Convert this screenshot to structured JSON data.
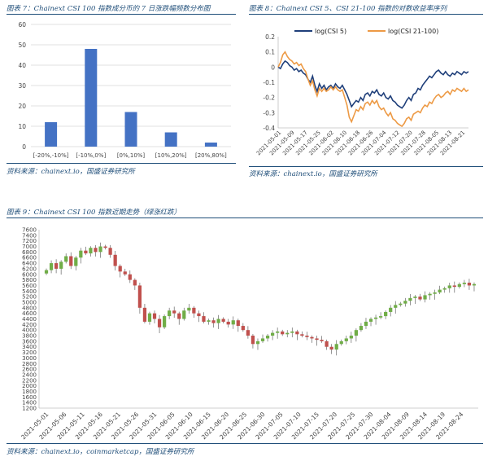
{
  "fig7": {
    "caption": "图表 7：Chainext CSI 100 指数成分币的 7 日涨跌幅频数分布图",
    "source": "资料来源：chainext.io，国盛证券研究所"
  },
  "fig8": {
    "caption": "图表 8：Chainext CSI 5、CSI 21-100 指数的对数收益率序列",
    "source": "资料来源：chainext.io，国盛证券研究所"
  },
  "fig9": {
    "caption": "图表 9：Chainext CSI 100 指数近期走势（绿涨红跌）",
    "source": "资料来源：chainext.io，coinmarketcap，国盛证券研究所"
  },
  "colors": {
    "bar": "#4472c4",
    "csi5": "#1f3f7a",
    "csi21": "#ed9a45",
    "up": "#70ad47",
    "down": "#c0504d",
    "grid": "#d9d9d9",
    "text": "#444444"
  },
  "chart_data": [
    {
      "id": "fig7",
      "type": "bar",
      "categories": [
        "[-20%,-10%]",
        "[-10%,0%]",
        "[0%,10%]",
        "[10%,20%]",
        "[20%,80%]"
      ],
      "values": [
        12,
        48,
        17,
        7,
        2
      ],
      "ylim": [
        0,
        60
      ],
      "yticks": [
        0,
        10,
        20,
        30,
        40,
        50,
        60
      ],
      "grid": true
    },
    {
      "id": "fig8",
      "type": "line",
      "legend": "top",
      "ylim": [
        -0.4,
        0.2
      ],
      "yticks": [
        0.2,
        0.1,
        0,
        -0.1,
        -0.2,
        -0.3,
        -0.4
      ],
      "xlabels": [
        "2021-05-01",
        "2021-05-09",
        "2021-05-17",
        "2021-05-25",
        "2021-06-02",
        "2021-06-10",
        "2021-06-18",
        "2021-06-26",
        "2021-07-04",
        "2021-07-12",
        "2021-07-20",
        "2021-07-28",
        "2021-08-05",
        "2021-08-13",
        "2021-08-21"
      ],
      "series": [
        {
          "name": "log(CSI 5)",
          "values": [
            0.0,
            -0.01,
            0.02,
            0.04,
            0.03,
            0.01,
            0.0,
            -0.02,
            -0.01,
            -0.03,
            -0.02,
            -0.04,
            -0.05,
            -0.08,
            -0.1,
            -0.06,
            -0.12,
            -0.16,
            -0.11,
            -0.14,
            -0.12,
            -0.15,
            -0.13,
            -0.12,
            -0.14,
            -0.11,
            -0.13,
            -0.14,
            -0.12,
            -0.15,
            -0.18,
            -0.22,
            -0.26,
            -0.24,
            -0.22,
            -0.23,
            -0.2,
            -0.22,
            -0.18,
            -0.17,
            -0.19,
            -0.16,
            -0.17,
            -0.15,
            -0.18,
            -0.19,
            -0.17,
            -0.2,
            -0.21,
            -0.19,
            -0.22,
            -0.23,
            -0.25,
            -0.26,
            -0.27,
            -0.25,
            -0.22,
            -0.2,
            -0.22,
            -0.18,
            -0.17,
            -0.14,
            -0.15,
            -0.12,
            -0.1,
            -0.08,
            -0.06,
            -0.07,
            -0.05,
            -0.03,
            -0.02,
            -0.04,
            -0.05,
            -0.03,
            -0.05,
            -0.06,
            -0.04,
            -0.05,
            -0.03,
            -0.04,
            -0.05,
            -0.03,
            -0.04,
            -0.03
          ]
        },
        {
          "name": "log(CSI 21-100)",
          "values": [
            0.0,
            0.03,
            0.08,
            0.1,
            0.07,
            0.05,
            0.04,
            0.02,
            0.03,
            0.01,
            0.02,
            -0.01,
            -0.03,
            -0.08,
            -0.12,
            -0.09,
            -0.15,
            -0.19,
            -0.14,
            -0.16,
            -0.14,
            -0.16,
            -0.15,
            -0.13,
            -0.15,
            -0.13,
            -0.15,
            -0.16,
            -0.15,
            -0.2,
            -0.25,
            -0.33,
            -0.36,
            -0.32,
            -0.28,
            -0.29,
            -0.26,
            -0.28,
            -0.24,
            -0.23,
            -0.25,
            -0.22,
            -0.24,
            -0.22,
            -0.26,
            -0.28,
            -0.27,
            -0.3,
            -0.32,
            -0.3,
            -0.34,
            -0.35,
            -0.37,
            -0.38,
            -0.39,
            -0.37,
            -0.34,
            -0.33,
            -0.35,
            -0.31,
            -0.3,
            -0.29,
            -0.3,
            -0.27,
            -0.25,
            -0.26,
            -0.23,
            -0.24,
            -0.21,
            -0.19,
            -0.18,
            -0.2,
            -0.19,
            -0.17,
            -0.16,
            -0.18,
            -0.15,
            -0.16,
            -0.14,
            -0.15,
            -0.16,
            -0.14,
            -0.16,
            -0.15
          ]
        }
      ]
    },
    {
      "id": "fig9",
      "type": "candlestick",
      "ylim": [
        1200,
        7600
      ],
      "yticks": [
        1200,
        1400,
        1600,
        1800,
        2000,
        2200,
        2400,
        2600,
        2800,
        3000,
        3200,
        3400,
        3600,
        3800,
        4000,
        4200,
        4400,
        4600,
        4800,
        5000,
        5200,
        5400,
        5600,
        5800,
        6000,
        6200,
        6400,
        6600,
        6800,
        7000,
        7200,
        7400,
        7600
      ],
      "xlabels": [
        "2021-05-01",
        "2021-05-06",
        "2021-05-11",
        "2021-05-16",
        "2021-05-21",
        "2021-05-26",
        "2021-05-31",
        "2021-06-05",
        "2021-06-10",
        "2021-06-15",
        "2021-06-20",
        "2021-06-25",
        "2021-06-30",
        "2021-07-05",
        "2021-07-10",
        "2021-07-15",
        "2021-07-20",
        "2021-07-25",
        "2021-07-30",
        "2021-08-04",
        "2021-08-09",
        "2021-08-14",
        "2021-08-19",
        "2021-08-24"
      ],
      "closes": [
        6150,
        6400,
        6200,
        6450,
        6650,
        6300,
        6600,
        6850,
        6750,
        6950,
        6800,
        7000,
        6950,
        6700,
        6300,
        6100,
        6000,
        5800,
        5600,
        4800,
        4300,
        4600,
        4400,
        4100,
        4500,
        4700,
        4600,
        4400,
        4700,
        4800,
        4600,
        4500,
        4300,
        4350,
        4250,
        4400,
        4300,
        4200,
        4350,
        4150,
        4000,
        3800,
        3500,
        3600,
        3700,
        3800,
        3900,
        3950,
        3850,
        3900,
        3950,
        3850,
        3800,
        3750,
        3700,
        3650,
        3600,
        3400,
        3300,
        3500,
        3600,
        3700,
        3800,
        4000,
        4150,
        4300,
        4400,
        4450,
        4500,
        4650,
        4800,
        4900,
        4950,
        5050,
        5150,
        5200,
        5100,
        5250,
        5300,
        5350,
        5450,
        5500,
        5600,
        5550,
        5650,
        5700,
        5600,
        5650
      ]
    }
  ]
}
